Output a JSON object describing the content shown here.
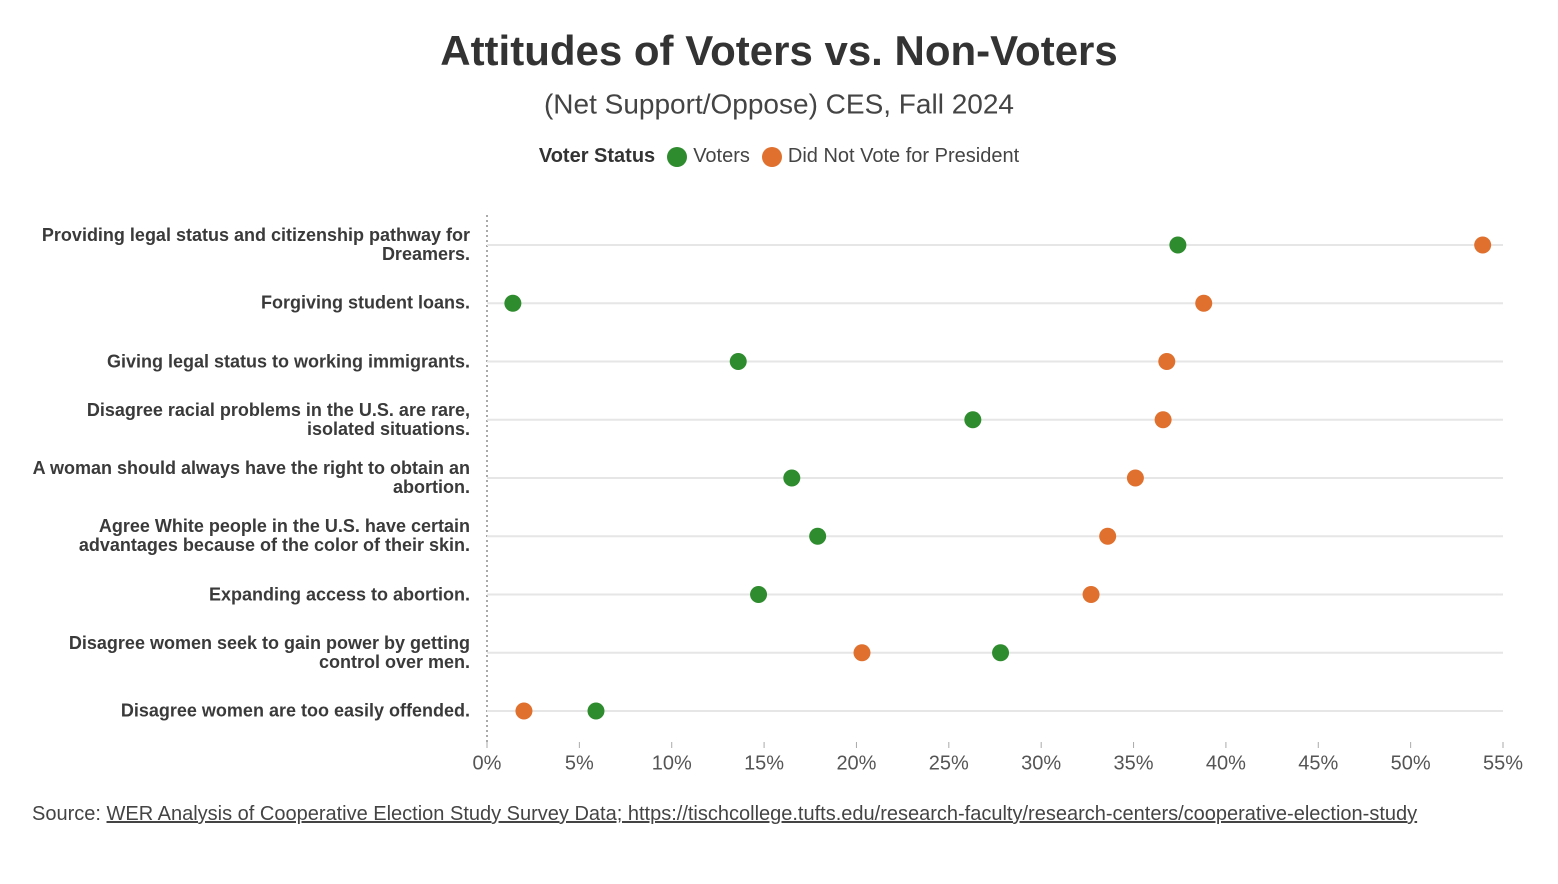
{
  "chart_data": {
    "type": "dot",
    "title": "Attitudes of Voters vs. Non-Voters",
    "subtitle": "(Net Support/Oppose) CES, Fall 2024",
    "legend_title": "Voter Status",
    "categories": [
      "Providing legal status and citizenship pathway for Dreamers.",
      "Forgiving student loans.",
      "Giving legal status to working immigrants.",
      "Disagree racial problems in the U.S. are rare, isolated situations.",
      "A woman should always have the right to obtain an abortion.",
      "Agree White people in the U.S. have certain advantages because of the color of their skin.",
      "Expanding access to abortion.",
      "Disagree women seek to gain power by getting control over men.",
      "Disagree women are too easily offended."
    ],
    "series": [
      {
        "name": "Voters",
        "color": "#2e8b2e",
        "values": [
          37.4,
          1.4,
          13.6,
          26.3,
          16.5,
          17.9,
          14.7,
          27.8,
          5.9
        ]
      },
      {
        "name": "Did Not Vote for President",
        "color": "#e0702e",
        "values": [
          53.9,
          38.8,
          36.8,
          36.6,
          35.1,
          33.6,
          32.7,
          20.3,
          2.0
        ]
      }
    ],
    "xlim": [
      0,
      55
    ],
    "xticks": [
      {
        "value": 0,
        "label": "0%"
      },
      {
        "value": 5,
        "label": "5%"
      },
      {
        "value": 10,
        "label": "10%"
      },
      {
        "value": 15,
        "label": "15%"
      },
      {
        "value": 20,
        "label": "20%"
      },
      {
        "value": 25,
        "label": "25%"
      },
      {
        "value": 30,
        "label": "30%"
      },
      {
        "value": 35,
        "label": "35%"
      },
      {
        "value": 40,
        "label": "40%"
      },
      {
        "value": 45,
        "label": "45%"
      },
      {
        "value": 50,
        "label": "50%"
      },
      {
        "value": 55,
        "label": "55%"
      }
    ],
    "grid": true,
    "source": {
      "label": "Source:",
      "text": "WER Analysis of Cooperative Election Study Survey Data; https://tischcollege.tufts.edu/research-faculty/research-centers/cooperative-election-study"
    }
  }
}
